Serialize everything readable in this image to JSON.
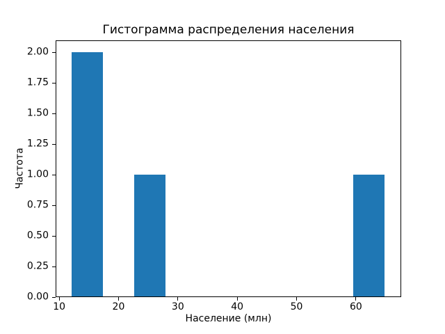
{
  "figure": {
    "background_color": "#ffffff",
    "text_color": "#000000"
  },
  "chart_data": {
    "type": "bar",
    "subtype": "histogram",
    "title": "Гистограмма распределения населения",
    "xlabel": "Население (млн)",
    "ylabel": "Частота",
    "bar_color": "#1f77b4",
    "grid": false,
    "legend": null,
    "xlim": [
      9.4,
      67.6
    ],
    "ylim": [
      0,
      2.1
    ],
    "x_ticks": [
      "10",
      "20",
      "30",
      "40",
      "50",
      "60"
    ],
    "y_ticks": [
      "0.00",
      "0.25",
      "0.50",
      "0.75",
      "1.00",
      "1.25",
      "1.50",
      "1.75",
      "2.00"
    ],
    "bins": {
      "edges": [
        12.1,
        17.37,
        22.64,
        27.91,
        33.18,
        38.45,
        43.72,
        48.99,
        54.26,
        59.53,
        64.8
      ],
      "counts": [
        2,
        0,
        1,
        0,
        0,
        0,
        0,
        0,
        0,
        1
      ]
    }
  }
}
